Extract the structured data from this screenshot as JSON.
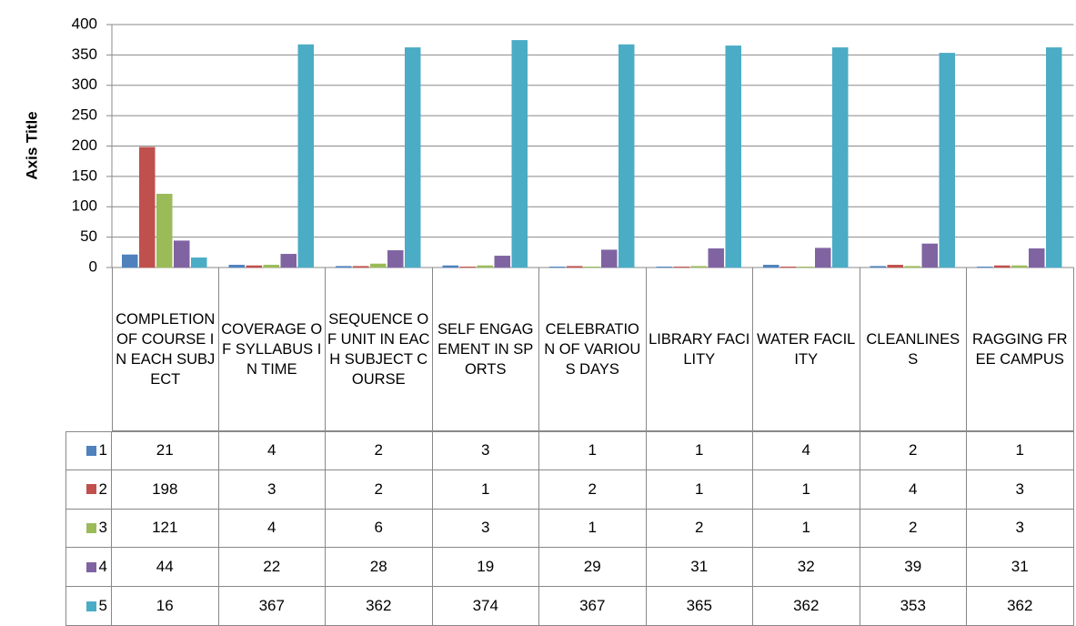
{
  "chart_data": {
    "type": "bar",
    "y_label": "Axis Title",
    "categories": [
      "COMPLETION OF COURSE IN EACH SUBJECT",
      "COVERAGE OF SYLLABUS IN TIME",
      "SEQUENCE OF UNIT IN EACH SUBJECT COURSE",
      "SELF ENGAGEMENT IN SPORTS",
      "CELEBRATION OF VARIOUS DAYS",
      "LIBRARY FACILITY",
      "WATER FACILITY",
      "CLEANLINESS",
      "RAGGING FREE CAMPUS"
    ],
    "series": [
      {
        "name": "1",
        "color": "#4f81bd",
        "values": [
          21,
          4,
          2,
          3,
          1,
          1,
          4,
          2,
          1
        ]
      },
      {
        "name": "2",
        "color": "#c0504d",
        "values": [
          198,
          3,
          2,
          1,
          2,
          1,
          1,
          4,
          3
        ]
      },
      {
        "name": "3",
        "color": "#9bbb59",
        "values": [
          121,
          4,
          6,
          3,
          1,
          2,
          1,
          2,
          3
        ]
      },
      {
        "name": "4",
        "color": "#8064a2",
        "values": [
          44,
          22,
          28,
          19,
          29,
          31,
          32,
          39,
          31
        ]
      },
      {
        "name": "5",
        "color": "#4bacc6",
        "values": [
          16,
          367,
          362,
          374,
          367,
          365,
          362,
          353,
          362
        ]
      }
    ],
    "ylim": [
      0,
      400
    ],
    "yticks": [
      0,
      50,
      100,
      150,
      200,
      250,
      300,
      350,
      400
    ],
    "grid": true
  }
}
